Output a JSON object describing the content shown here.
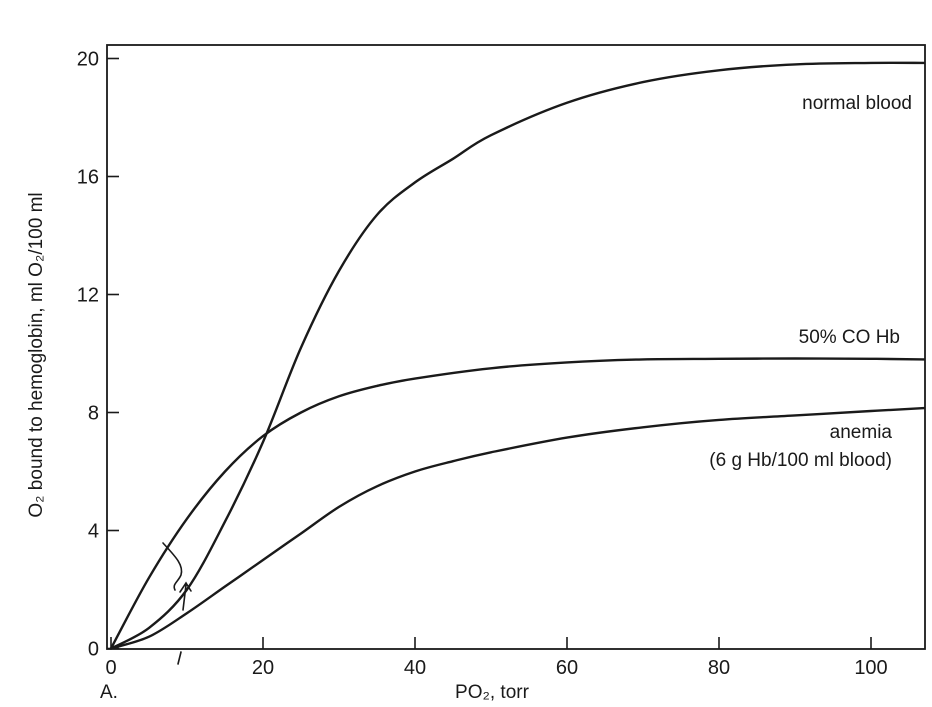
{
  "chart_data": {
    "type": "line",
    "panel_label": "A.",
    "xlabel": "PO₂, torr",
    "ylabel": "O₂ bound to hemoglobin, ml O₂/100 ml",
    "xlim": [
      0,
      107
    ],
    "ylim": [
      0,
      20
    ],
    "xticks": [
      0,
      20,
      40,
      60,
      80,
      100
    ],
    "yticks": [
      0,
      4,
      8,
      12,
      16,
      20
    ],
    "grid": false,
    "series": [
      {
        "name": "normal blood",
        "x": [
          0,
          5,
          10,
          15,
          20,
          25,
          30,
          35,
          40,
          45,
          50,
          60,
          70,
          80,
          90,
          100,
          107
        ],
        "y": [
          0,
          0.7,
          2.0,
          4.3,
          7.0,
          10.2,
          12.8,
          14.7,
          15.8,
          16.6,
          17.4,
          18.5,
          19.2,
          19.6,
          19.8,
          19.85,
          19.85
        ]
      },
      {
        "name": "50% CO Hb",
        "x": [
          0,
          5,
          10,
          15,
          20,
          25,
          30,
          35,
          40,
          50,
          60,
          70,
          80,
          90,
          100,
          107
        ],
        "y": [
          0,
          2.4,
          4.4,
          6.0,
          7.2,
          8.0,
          8.55,
          8.9,
          9.15,
          9.5,
          9.7,
          9.8,
          9.82,
          9.83,
          9.82,
          9.8
        ]
      },
      {
        "name": "anemia",
        "name_line2": "(6 g Hb/100 ml blood)",
        "x": [
          0,
          5,
          10,
          15,
          20,
          25,
          30,
          35,
          40,
          45,
          50,
          60,
          70,
          80,
          90,
          100,
          107
        ],
        "y": [
          0,
          0.4,
          1.2,
          2.1,
          3.0,
          3.9,
          4.8,
          5.5,
          6.0,
          6.35,
          6.65,
          7.15,
          7.5,
          7.75,
          7.9,
          8.05,
          8.15
        ]
      }
    ]
  }
}
